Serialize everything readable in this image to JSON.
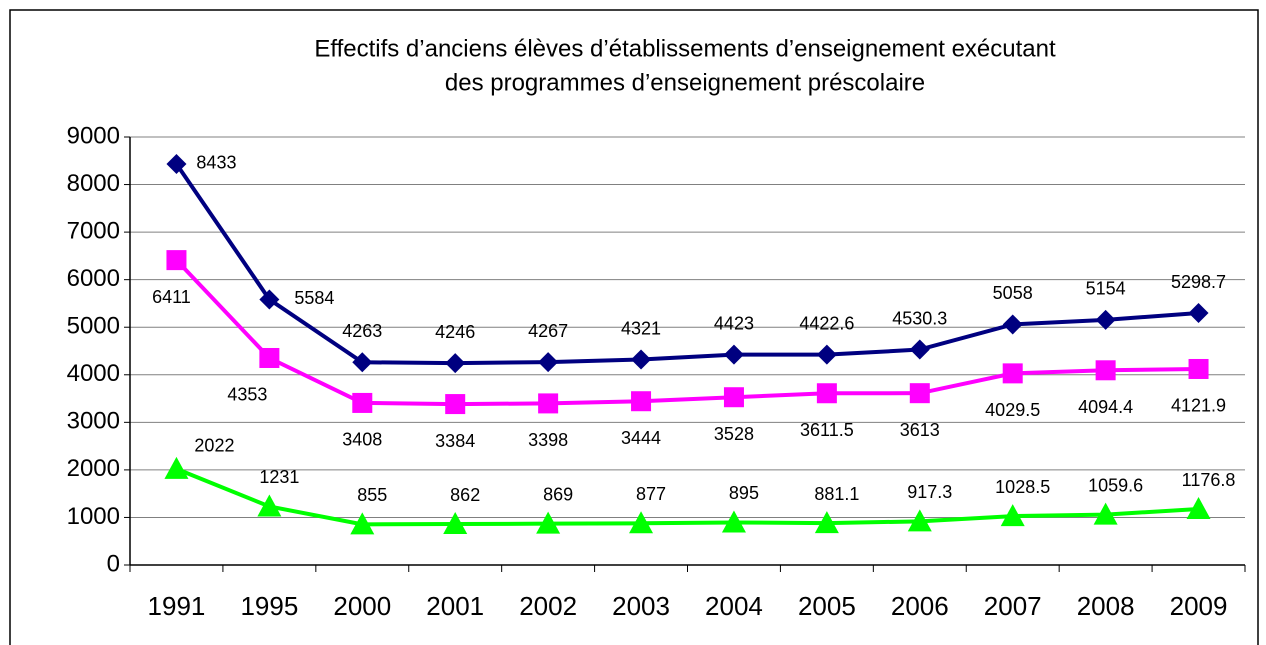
{
  "chart_data": {
    "type": "line",
    "title": [
      "Effectifs d’anciens élèves d’établissements d’enseignement exécutant",
      "des programmes d’enseignement préscolaire"
    ],
    "categories": [
      "1991",
      "1995",
      "2000",
      "2001",
      "2002",
      "2003",
      "2004",
      "2005",
      "2006",
      "2007",
      "2008",
      "2009"
    ],
    "series": [
      {
        "color": "#000080",
        "marker": "diamond",
        "values": [
          8433,
          5584,
          4263,
          4246,
          4267,
          4321,
          4423,
          4422.6,
          4530.3,
          5058,
          5154,
          5298.7
        ]
      },
      {
        "color": "#ff00ff",
        "marker": "square",
        "values": [
          6411,
          4353,
          3408,
          3384,
          3398,
          3444,
          3528,
          3611.5,
          3613,
          4029.5,
          4094.4,
          4121.9
        ]
      },
      {
        "color": "#00ff00",
        "marker": "triangle",
        "values": [
          2022,
          1231,
          855,
          862,
          869,
          877,
          895,
          881.1,
          917.3,
          1028.5,
          1059.6,
          1176.8
        ]
      }
    ],
    "ylim": [
      0,
      9000
    ],
    "yticks": [
      0,
      1000,
      2000,
      3000,
      4000,
      5000,
      6000,
      7000,
      8000,
      9000
    ],
    "grid": true
  }
}
